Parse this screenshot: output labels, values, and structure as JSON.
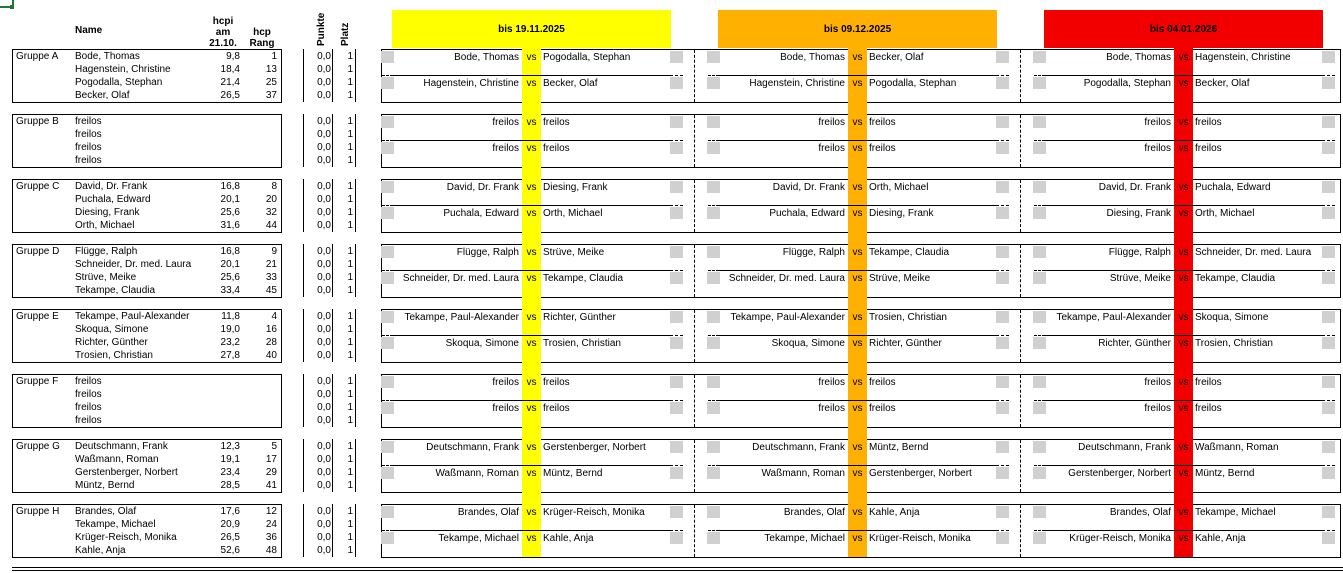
{
  "header": {
    "name": "Name",
    "hcpi_line1": "hcpi",
    "hcpi_line2": "am",
    "hcpi_line3": "21.10.",
    "rang_line1": "hcp",
    "rang_line2": "Rang",
    "punkte": "Punkte",
    "platz": "Platz",
    "vs": "vs"
  },
  "rounds": [
    {
      "label": "bis 19.11.2025",
      "color": "#ffff00"
    },
    {
      "label": "bis 09.12.2025",
      "color": "#ffb000"
    },
    {
      "label": "bis 04.01.2026",
      "color": "#f20000"
    }
  ],
  "groups": [
    {
      "label": "Gruppe A",
      "players": [
        {
          "name": "Bode, Thomas",
          "hcpi": "9,8",
          "rang": "1",
          "punkte": "0,0",
          "platz": "1"
        },
        {
          "name": "Hagenstein, Christine",
          "hcpi": "18,4",
          "rang": "13",
          "punkte": "0,0",
          "platz": "1"
        },
        {
          "name": "Pogodalla, Stephan",
          "hcpi": "21,4",
          "rang": "25",
          "punkte": "0,0",
          "platz": "1"
        },
        {
          "name": "Becker, Olaf",
          "hcpi": "26,5",
          "rang": "37",
          "punkte": "0,0",
          "platz": "1"
        }
      ],
      "matches": [
        [
          [
            "Bode, Thomas",
            "Pogodalla, Stephan"
          ],
          [
            "Hagenstein, Christine",
            "Becker, Olaf"
          ]
        ],
        [
          [
            "Bode, Thomas",
            "Becker, Olaf"
          ],
          [
            "Hagenstein, Christine",
            "Pogodalla, Stephan"
          ]
        ],
        [
          [
            "Bode, Thomas",
            "Hagenstein, Christine"
          ],
          [
            "Pogodalla, Stephan",
            "Becker, Olaf"
          ]
        ]
      ]
    },
    {
      "label": "Gruppe B",
      "players": [
        {
          "name": "freilos",
          "hcpi": "",
          "rang": "",
          "punkte": "0,0",
          "platz": "1"
        },
        {
          "name": "freilos",
          "hcpi": "",
          "rang": "",
          "punkte": "0,0",
          "platz": "1"
        },
        {
          "name": "freilos",
          "hcpi": "",
          "rang": "",
          "punkte": "0,0",
          "platz": "1"
        },
        {
          "name": "freilos",
          "hcpi": "",
          "rang": "",
          "punkte": "0,0",
          "platz": "1"
        }
      ],
      "matches": [
        [
          [
            "freilos",
            "freilos"
          ],
          [
            "freilos",
            "freilos"
          ]
        ],
        [
          [
            "freilos",
            "freilos"
          ],
          [
            "freilos",
            "freilos"
          ]
        ],
        [
          [
            "freilos",
            "freilos"
          ],
          [
            "freilos",
            "freilos"
          ]
        ]
      ]
    },
    {
      "label": "Gruppe C",
      "players": [
        {
          "name": "David, Dr. Frank",
          "hcpi": "16,8",
          "rang": "8",
          "punkte": "0,0",
          "platz": "1"
        },
        {
          "name": "Puchala, Edward",
          "hcpi": "20,1",
          "rang": "20",
          "punkte": "0,0",
          "platz": "1"
        },
        {
          "name": "Diesing, Frank",
          "hcpi": "25,6",
          "rang": "32",
          "punkte": "0,0",
          "platz": "1"
        },
        {
          "name": "Orth, Michael",
          "hcpi": "31,6",
          "rang": "44",
          "punkte": "0,0",
          "platz": "1"
        }
      ],
      "matches": [
        [
          [
            "David, Dr. Frank",
            "Diesing, Frank"
          ],
          [
            "Puchala, Edward",
            "Orth, Michael"
          ]
        ],
        [
          [
            "David, Dr. Frank",
            "Orth, Michael"
          ],
          [
            "Puchala, Edward",
            "Diesing, Frank"
          ]
        ],
        [
          [
            "David, Dr. Frank",
            "Puchala, Edward"
          ],
          [
            "Diesing, Frank",
            "Orth, Michael"
          ]
        ]
      ]
    },
    {
      "label": "Gruppe D",
      "players": [
        {
          "name": "Flügge, Ralph",
          "hcpi": "16,8",
          "rang": "9",
          "punkte": "0,0",
          "platz": "1"
        },
        {
          "name": "Schneider, Dr. med. Laura",
          "hcpi": "20,1",
          "rang": "21",
          "punkte": "0,0",
          "platz": "1"
        },
        {
          "name": "Strüve, Meike",
          "hcpi": "25,6",
          "rang": "33",
          "punkte": "0,0",
          "platz": "1"
        },
        {
          "name": "Tekampe, Claudia",
          "hcpi": "33,4",
          "rang": "45",
          "punkte": "0,0",
          "platz": "1"
        }
      ],
      "matches": [
        [
          [
            "Flügge, Ralph",
            "Strüve, Meike"
          ],
          [
            "Schneider, Dr. med. Laura",
            "Tekampe, Claudia"
          ]
        ],
        [
          [
            "Flügge, Ralph",
            "Tekampe, Claudia"
          ],
          [
            "Schneider, Dr. med. Laura",
            "Strüve, Meike"
          ]
        ],
        [
          [
            "Flügge, Ralph",
            "Schneider, Dr. med. Laura"
          ],
          [
            "Strüve, Meike",
            "Tekampe, Claudia"
          ]
        ]
      ]
    },
    {
      "label": "Gruppe E",
      "players": [
        {
          "name": "Tekampe, Paul-Alexander",
          "hcpi": "11,8",
          "rang": "4",
          "punkte": "0,0",
          "platz": "1"
        },
        {
          "name": "Skoqua, Simone",
          "hcpi": "19,0",
          "rang": "16",
          "punkte": "0,0",
          "platz": "1"
        },
        {
          "name": "Richter, Günther",
          "hcpi": "23,2",
          "rang": "28",
          "punkte": "0,0",
          "platz": "1"
        },
        {
          "name": "Trosien, Christian",
          "hcpi": "27,8",
          "rang": "40",
          "punkte": "0,0",
          "platz": "1"
        }
      ],
      "matches": [
        [
          [
            "Tekampe, Paul-Alexander",
            "Richter, Günther"
          ],
          [
            "Skoqua, Simone",
            "Trosien, Christian"
          ]
        ],
        [
          [
            "Tekampe, Paul-Alexander",
            "Trosien, Christian"
          ],
          [
            "Skoqua, Simone",
            "Richter, Günther"
          ]
        ],
        [
          [
            "Tekampe, Paul-Alexander",
            "Skoqua, Simone"
          ],
          [
            "Richter, Günther",
            "Trosien, Christian"
          ]
        ]
      ]
    },
    {
      "label": "Gruppe F",
      "players": [
        {
          "name": "freilos",
          "hcpi": "",
          "rang": "",
          "punkte": "0,0",
          "platz": "1"
        },
        {
          "name": "freilos",
          "hcpi": "",
          "rang": "",
          "punkte": "0,0",
          "platz": "1"
        },
        {
          "name": "freilos",
          "hcpi": "",
          "rang": "",
          "punkte": "0,0",
          "platz": "1"
        },
        {
          "name": "freilos",
          "hcpi": "",
          "rang": "",
          "punkte": "0,0",
          "platz": "1"
        }
      ],
      "matches": [
        [
          [
            "freilos",
            "freilos"
          ],
          [
            "freilos",
            "freilos"
          ]
        ],
        [
          [
            "freilos",
            "freilos"
          ],
          [
            "freilos",
            "freilos"
          ]
        ],
        [
          [
            "freilos",
            "freilos"
          ],
          [
            "freilos",
            "freilos"
          ]
        ]
      ]
    },
    {
      "label": "Gruppe G",
      "players": [
        {
          "name": "Deutschmann, Frank",
          "hcpi": "12,3",
          "rang": "5",
          "punkte": "0,0",
          "platz": "1"
        },
        {
          "name": "Waßmann, Roman",
          "hcpi": "19,1",
          "rang": "17",
          "punkte": "0,0",
          "platz": "1"
        },
        {
          "name": "Gerstenberger, Norbert",
          "hcpi": "23,4",
          "rang": "29",
          "punkte": "0,0",
          "platz": "1"
        },
        {
          "name": "Müntz, Bernd",
          "hcpi": "28,5",
          "rang": "41",
          "punkte": "0,0",
          "platz": "1"
        }
      ],
      "matches": [
        [
          [
            "Deutschmann, Frank",
            "Gerstenberger, Norbert"
          ],
          [
            "Waßmann, Roman",
            "Müntz, Bernd"
          ]
        ],
        [
          [
            "Deutschmann, Frank",
            "Müntz, Bernd"
          ],
          [
            "Waßmann, Roman",
            "Gerstenberger, Norbert"
          ]
        ],
        [
          [
            "Deutschmann, Frank",
            "Waßmann, Roman"
          ],
          [
            "Gerstenberger, Norbert",
            "Müntz, Bernd"
          ]
        ]
      ]
    },
    {
      "label": "Gruppe H",
      "players": [
        {
          "name": "Brandes, Olaf",
          "hcpi": "17,6",
          "rang": "12",
          "punkte": "0,0",
          "platz": "1"
        },
        {
          "name": "Tekampe, Michael",
          "hcpi": "20,9",
          "rang": "24",
          "punkte": "0,0",
          "platz": "1"
        },
        {
          "name": "Krüger-Reisch, Monika",
          "hcpi": "26,5",
          "rang": "36",
          "punkte": "0,0",
          "platz": "1"
        },
        {
          "name": "Kahle, Anja",
          "hcpi": "52,6",
          "rang": "48",
          "punkte": "0,0",
          "platz": "1"
        }
      ],
      "matches": [
        [
          [
            "Brandes, Olaf",
            "Krüger-Reisch, Monika"
          ],
          [
            "Tekampe, Michael",
            "Kahle, Anja"
          ]
        ],
        [
          [
            "Brandes, Olaf",
            "Kahle, Anja"
          ],
          [
            "Tekampe, Michael",
            "Krüger-Reisch, Monika"
          ]
        ],
        [
          [
            "Brandes, Olaf",
            "Tekampe, Michael"
          ],
          [
            "Krüger-Reisch, Monika",
            "Kahle, Anja"
          ]
        ]
      ]
    }
  ]
}
